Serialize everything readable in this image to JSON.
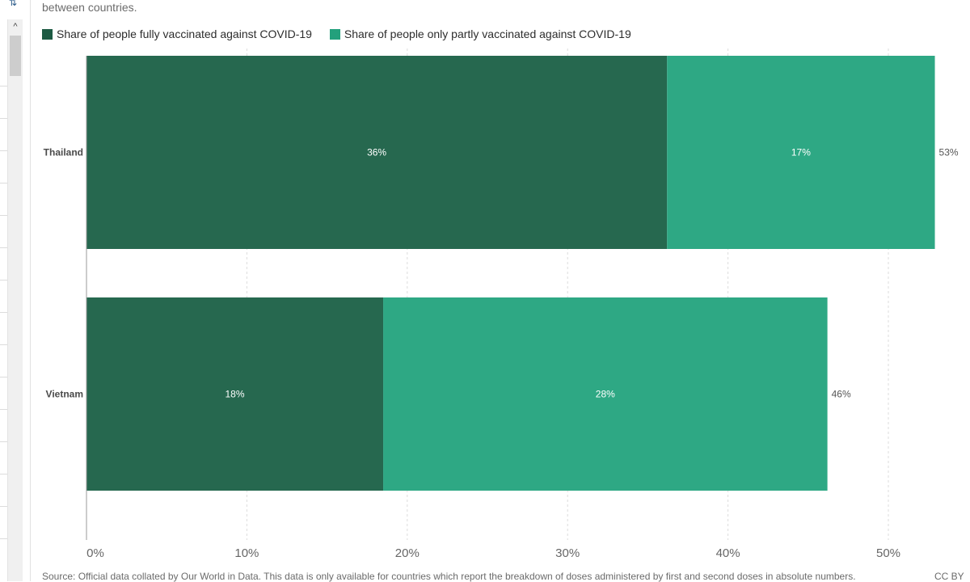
{
  "page": {
    "subtitle_fragment": "between countries.",
    "source": "Source: Official data collated by Our World in Data. This data is only available for countries which report the breakdown of doses administered by first and second doses in absolute numbers.",
    "license": "CC BY"
  },
  "colors": {
    "fully": "#26684f",
    "partly": "#2ea884",
    "legend_fully": "#1d5a43",
    "legend_partly": "#23a07c"
  },
  "icons": {
    "sort": "sort-icon",
    "scroll_up": "chevron-up-icon"
  },
  "chart_data": {
    "type": "bar",
    "orientation": "horizontal",
    "stacked": true,
    "categories": [
      "Thailand",
      "Vietnam"
    ],
    "series": [
      {
        "name": "Share of people fully vaccinated against COVID-19",
        "values": [
          36.2,
          18.5
        ]
      },
      {
        "name": "Share of people only partly vaccinated against COVID-19",
        "values": [
          16.7,
          27.7
        ]
      }
    ],
    "bar_labels": [
      [
        "36%",
        "17%"
      ],
      [
        "18%",
        "28%"
      ]
    ],
    "totals": [
      "53%",
      "46%"
    ],
    "x_ticks": [
      0,
      10,
      20,
      30,
      40,
      50
    ],
    "x_tick_labels": [
      "0%",
      "10%",
      "20%",
      "30%",
      "40%",
      "50%"
    ],
    "xlim": [
      0,
      53
    ],
    "grid": "vertical dashed",
    "legend_position": "top"
  }
}
